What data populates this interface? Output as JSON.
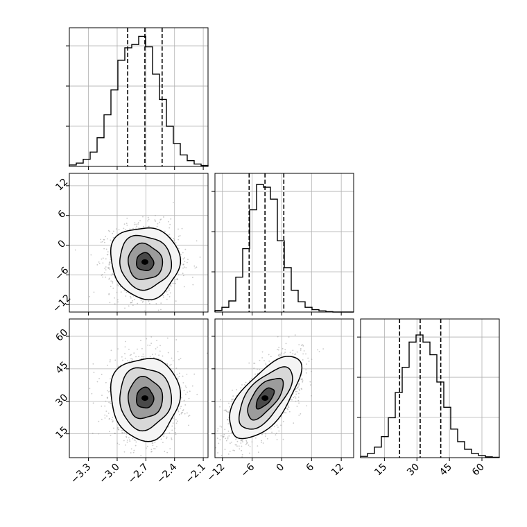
{
  "colors": {
    "ink": "#000000",
    "grid": "#b0b0b0",
    "scatter": "#9a9a9a",
    "background": "#ffffff"
  },
  "chart_data": {
    "type": "corner",
    "grid": true,
    "variables": [
      {
        "range": [
          -3.5,
          -2.05
        ],
        "ticks": [
          -3.3,
          -3.0,
          -2.7,
          -2.4,
          -2.1
        ],
        "tick_labels": [
          "−3.3",
          "−3.0",
          "−2.7",
          "−2.4",
          "−2.1"
        ],
        "quantiles": [
          -2.89,
          -2.71,
          -2.53
        ],
        "histogram": {
          "edges": [
            -3.5,
            -3.4275,
            -3.355,
            -3.2825,
            -3.21,
            -3.1375,
            -3.065,
            -2.9925,
            -2.92,
            -2.8475,
            -2.775,
            -2.7025,
            -2.63,
            -2.5575,
            -2.485,
            -2.4125,
            -2.34,
            -2.2675,
            -2.195,
            -2.1225,
            -2.05
          ],
          "counts": [
            3,
            7,
            15,
            30,
            60,
            108,
            160,
            222,
            248,
            255,
            272,
            250,
            193,
            140,
            84,
            48,
            24,
            12,
            5,
            2
          ],
          "ymax": 290
        }
      },
      {
        "range": [
          -13.5,
          14.5
        ],
        "ticks": [
          -12,
          -6,
          0,
          6,
          12
        ],
        "tick_labels": [
          "−12",
          "−6",
          "0",
          "6",
          "12"
        ],
        "quantiles": [
          -6.6,
          -3.4,
          0.4
        ],
        "histogram": {
          "edges": [
            -13.5,
            -12.1,
            -10.7,
            -9.3,
            -7.9,
            -6.5,
            -5.1,
            -3.7,
            -2.3,
            -0.9,
            0.5,
            1.9,
            3.3,
            4.7,
            6.1,
            7.5,
            8.9,
            10.3,
            11.7,
            13.1,
            14.5
          ],
          "counts": [
            4,
            12,
            28,
            88,
            160,
            258,
            322,
            315,
            285,
            180,
            112,
            55,
            26,
            12,
            6,
            3,
            1,
            0,
            0,
            0
          ],
          "ymax": 350
        }
      },
      {
        "range": [
          4,
          68
        ],
        "ticks": [
          15,
          30,
          45,
          60
        ],
        "tick_labels": [
          "15",
          "30",
          "45",
          "60"
        ],
        "quantiles": [
          22,
          31.5,
          41
        ],
        "histogram": {
          "edges": [
            4,
            7.2,
            10.4,
            13.6,
            16.8,
            20,
            23.2,
            26.4,
            29.6,
            32.8,
            36,
            39.2,
            42.4,
            45.6,
            48.8,
            52,
            55.2,
            58.4,
            61.6,
            64.8,
            68
          ],
          "counts": [
            3,
            10,
            25,
            50,
            95,
            155,
            215,
            275,
            292,
            275,
            245,
            180,
            120,
            68,
            38,
            20,
            10,
            5,
            2,
            1
          ],
          "ymax": 330
        }
      }
    ],
    "pairs": [
      {
        "x_var": 0,
        "y_var": 1,
        "mean": [
          -2.71,
          -3.4
        ],
        "sd": [
          0.18,
          3.6
        ],
        "correlation": -0.05,
        "contour_sigma": [
          0.5,
          1.0,
          1.5,
          2.0
        ],
        "sample_size": 1600
      },
      {
        "x_var": 0,
        "y_var": 2,
        "mean": [
          -2.71,
          31.5
        ],
        "sd": [
          0.18,
          9.5
        ],
        "correlation": 0.0,
        "contour_sigma": [
          0.5,
          1.0,
          1.5,
          2.0
        ],
        "sample_size": 1600
      },
      {
        "x_var": 1,
        "y_var": 2,
        "mean": [
          -3.4,
          31.5
        ],
        "sd": [
          3.6,
          9.5
        ],
        "correlation": 0.65,
        "contour_sigma": [
          0.5,
          1.0,
          1.5,
          2.0
        ],
        "sample_size": 1600
      }
    ]
  }
}
